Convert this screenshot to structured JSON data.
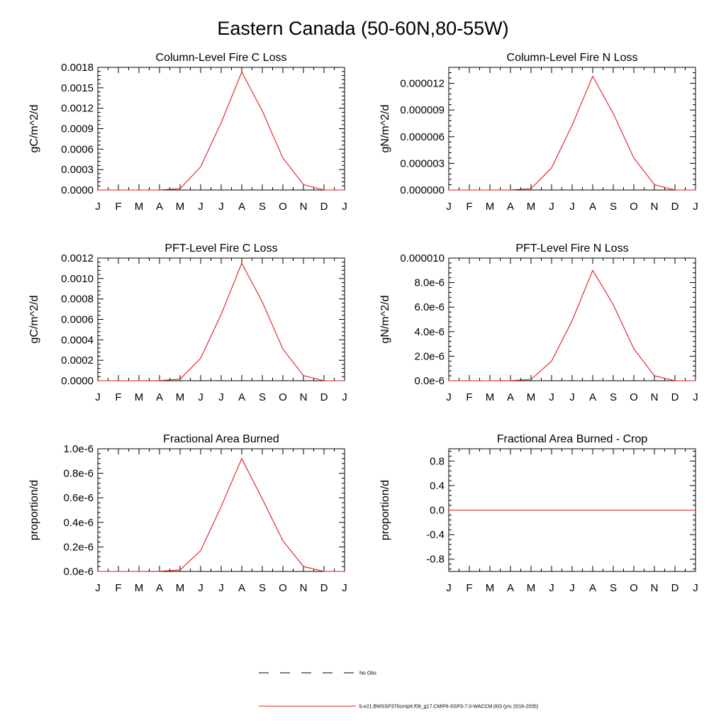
{
  "figure": {
    "title": "Eastern Canada (50-60N,80-55W)"
  },
  "months": [
    "J",
    "F",
    "M",
    "A",
    "M",
    "J",
    "J",
    "A",
    "S",
    "O",
    "N",
    "D",
    "J"
  ],
  "legend": {
    "entries": [
      {
        "label": "No Obs",
        "style": "dashed",
        "color": "#000000"
      },
      {
        "label": "b.e21.BWSSP370cmip6.f09_g17.CMIP6-SSP3-7.0-WACCM.003 (yrs 2016-2035)",
        "style": "solid",
        "color": "#e41a1c"
      }
    ]
  },
  "chart_data": [
    {
      "type": "line",
      "title": "Column-Level Fire C Loss",
      "ylabel": "gC/m^2/d",
      "xlabel": "",
      "ylim": [
        0,
        0.0018
      ],
      "yticks": [
        0,
        0.0003,
        0.0006,
        0.0009,
        0.0012,
        0.0015,
        0.0018
      ],
      "ytick_labels": [
        "0.0000",
        "0.0003",
        "0.0006",
        "0.0009",
        "0.0012",
        "0.0015",
        "0.0018"
      ],
      "grid": false,
      "series": [
        {
          "values": [
            0,
            0,
            0,
            1e-06,
            2e-05,
            0.00034,
            0.00099,
            0.00173,
            0.00116,
            0.00047,
            8e-05,
            0,
            0
          ],
          "color": "#e41a1c"
        }
      ]
    },
    {
      "type": "line",
      "title": "Column-Level Fire N Loss",
      "ylabel": "gN/m^2/d",
      "xlabel": "",
      "ylim": [
        0,
        1.38e-05
      ],
      "yticks": [
        0,
        3e-06,
        6e-06,
        9e-06,
        1.2e-05
      ],
      "ytick_labels": [
        "0.000000",
        "0.000003",
        "0.000006",
        "0.000009",
        "0.000012"
      ],
      "grid": false,
      "series": [
        {
          "values": [
            0,
            0,
            0,
            1e-08,
            1.5e-07,
            2.5e-06,
            7.3e-06,
            1.28e-05,
            8.6e-06,
            3.6e-06,
            6e-07,
            0,
            0
          ],
          "color": "#e41a1c"
        }
      ]
    },
    {
      "type": "line",
      "title": "PFT-Level Fire C Loss",
      "ylabel": "gC/m^2/d",
      "xlabel": "",
      "ylim": [
        0,
        0.0012
      ],
      "yticks": [
        0,
        0.0002,
        0.0004,
        0.0006,
        0.0008,
        0.001,
        0.0012
      ],
      "ytick_labels": [
        "0.0000",
        "0.0002",
        "0.0004",
        "0.0006",
        "0.0008",
        "0.0010",
        "0.0012"
      ],
      "grid": false,
      "series": [
        {
          "values": [
            0,
            0,
            0,
            1e-06,
            1.5e-05,
            0.00022,
            0.00065,
            0.00115,
            0.00077,
            0.00031,
            5e-05,
            0,
            0
          ],
          "color": "#e41a1c"
        }
      ]
    },
    {
      "type": "line",
      "title": "PFT-Level Fire N Loss",
      "ylabel": "gN/m^2/d",
      "xlabel": "",
      "ylim": [
        0,
        1e-05
      ],
      "yticks": [
        0,
        2e-06,
        4e-06,
        6e-06,
        8e-06,
        1e-05
      ],
      "ytick_labels": [
        "0.0e-6",
        "2.0e-6",
        "4.0e-6",
        "6.0e-6",
        "8.0e-6",
        "0.000010"
      ],
      "grid": false,
      "series": [
        {
          "values": [
            0,
            0,
            0,
            1e-08,
            1e-07,
            1.6e-06,
            4.9e-06,
            9e-06,
            6.2e-06,
            2.6e-06,
            4e-07,
            0,
            0
          ],
          "color": "#e41a1c"
        }
      ]
    },
    {
      "type": "line",
      "title": "Fractional Area Burned",
      "ylabel": "proportion/d",
      "xlabel": "",
      "ylim": [
        0,
        1e-06
      ],
      "yticks": [
        0,
        2e-07,
        4e-07,
        6e-07,
        8e-07,
        1e-06
      ],
      "ytick_labels": [
        "0.0e-6",
        "0.2e-6",
        "0.4e-6",
        "0.6e-6",
        "0.8e-6",
        "1.0e-6"
      ],
      "grid": false,
      "series": [
        {
          "values": [
            0,
            0,
            0,
            1e-09,
            1.2e-08,
            1.7e-07,
            5.3e-07,
            9.2e-07,
            5.9e-07,
            2.5e-07,
            4e-08,
            0,
            0
          ],
          "color": "#e41a1c"
        }
      ]
    },
    {
      "type": "line",
      "title": "Fractional Area Burned - Crop",
      "ylabel": "proportion/d",
      "xlabel": "",
      "ylim": [
        -1,
        1
      ],
      "yticks": [
        -0.8,
        -0.4,
        0,
        0.4,
        0.8
      ],
      "ytick_labels": [
        "-0.8",
        "-0.4",
        "0.0",
        "0.4",
        "0.8"
      ],
      "grid": false,
      "series": [
        {
          "values": [
            0,
            0,
            0,
            0,
            0,
            0,
            0,
            0,
            0,
            0,
            0,
            0,
            0
          ],
          "color": "#e41a1c"
        }
      ]
    }
  ]
}
